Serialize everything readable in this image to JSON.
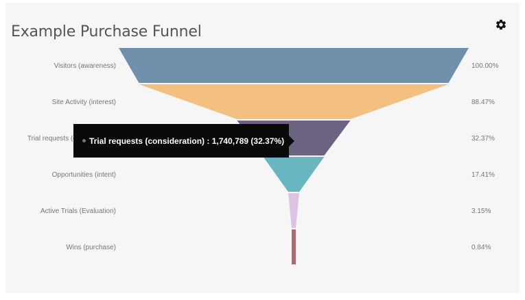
{
  "chart_data": {
    "type": "funnel",
    "title": "Example Purchase Funnel",
    "stages": [
      {
        "label": "Visitors (awareness)",
        "percent_label": "100.00%",
        "value": 100.0,
        "color": "#6f8fab"
      },
      {
        "label": "Site Activity (interest)",
        "percent_label": "88.47%",
        "value": 88.47,
        "color": "#f4c07f"
      },
      {
        "label": "Trial requests (consideration)",
        "percent_label": "32.37%",
        "value": 32.37,
        "color": "#6c6281"
      },
      {
        "label": "Opportunities (intent)",
        "percent_label": "17.41%",
        "value": 17.41,
        "color": "#67b6c0"
      },
      {
        "label": "Active Trials (Evaluation)",
        "percent_label": "3.15%",
        "value": 3.15,
        "color": "#dcc3e3"
      },
      {
        "label": "Wins (purchase)",
        "percent_label": "0.84%",
        "value": 0.84,
        "color": "#b2676d"
      }
    ],
    "tooltip": {
      "text": "Trial requests (consideration) : 1,740,789 (32.37%)",
      "stage": "Trial requests (consideration)"
    }
  },
  "icons": {
    "settings": "gear-icon"
  }
}
